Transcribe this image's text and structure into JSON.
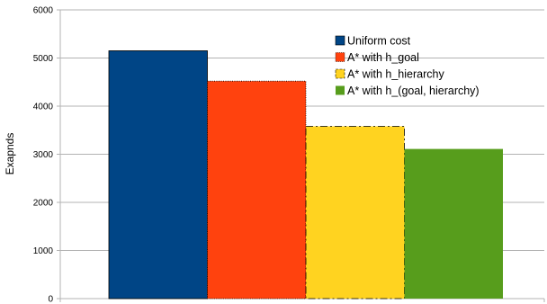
{
  "chart_data": {
    "type": "bar",
    "ylabel": "Exapnds",
    "ylim": [
      0,
      6000
    ],
    "yticks": [
      0,
      1000,
      2000,
      3000,
      4000,
      5000,
      6000
    ],
    "grid": true,
    "legend_position": "top-right",
    "series": [
      {
        "name": "Uniform cost",
        "values": [
          5150
        ],
        "color": "#004586"
      },
      {
        "name": "A* with h_goal",
        "values": [
          4520
        ],
        "color": "#ff420e"
      },
      {
        "name": "A* with h_hierarchy",
        "values": [
          3580
        ],
        "color": "#ffd320"
      },
      {
        "name": "A* with h_(goal, hierarchy)",
        "values": [
          3110
        ],
        "color": "#579d1c"
      }
    ]
  }
}
